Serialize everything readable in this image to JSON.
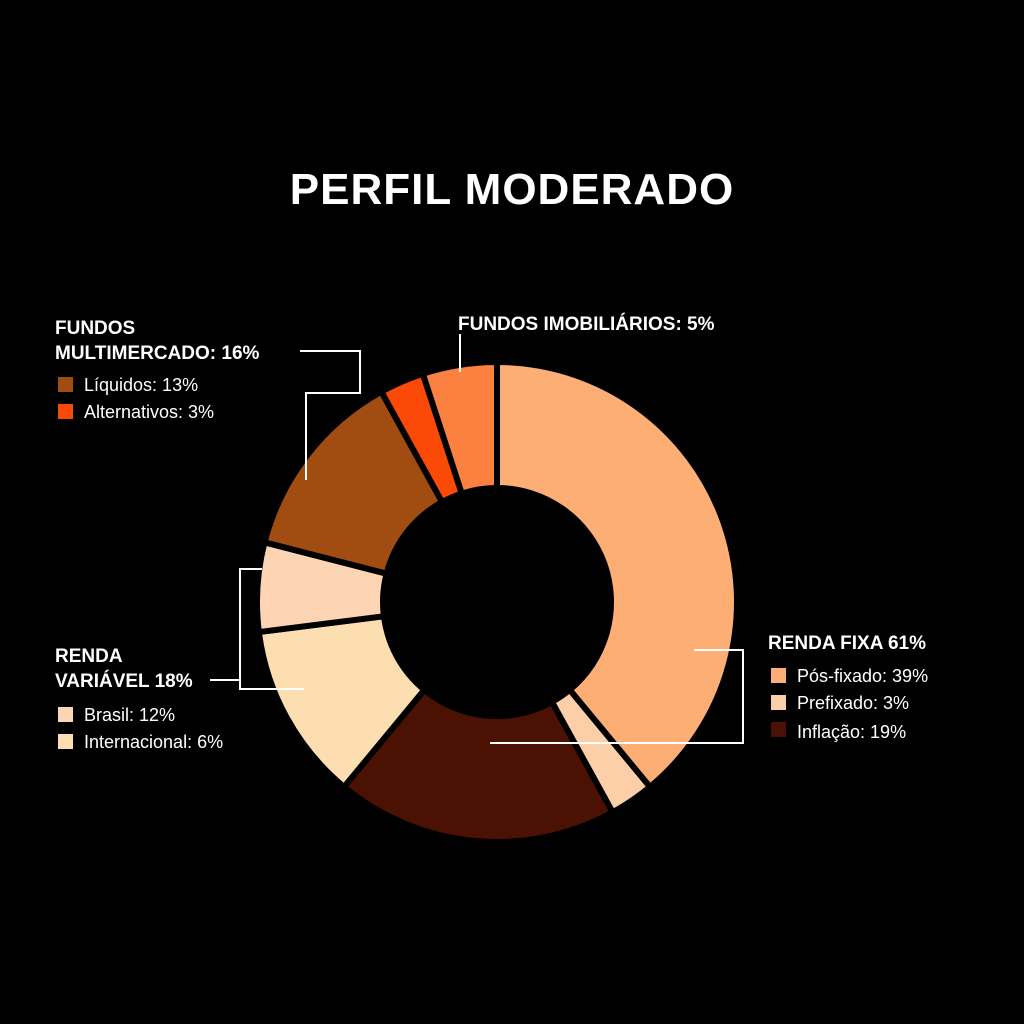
{
  "title": "PERFIL MODERADO",
  "chart_data": {
    "type": "pie",
    "title": "PERFIL MODERADO",
    "unit": "%",
    "groups": [
      {
        "name": "RENDA FIXA",
        "label": "RENDA FIXA 61%",
        "value": 61,
        "items": [
          {
            "name": "Pós-fixado",
            "label": "Pós-fixado: 39%",
            "value": 39,
            "color": "#FDAE74"
          },
          {
            "name": "Prefixado",
            "label": "Prefixado: 3%",
            "value": 3,
            "color": "#FDCFA8"
          },
          {
            "name": "Inflação",
            "label": "Inflação: 19%",
            "value": 19,
            "color": "#4B1204"
          }
        ]
      },
      {
        "name": "RENDA VARIÁVEL",
        "label_lines": [
          "RENDA",
          "VARIÁVEL 18%"
        ],
        "value": 18,
        "items": [
          {
            "name": "Brasil",
            "label": "Brasil: 12%",
            "value": 12,
            "color": "#FDDEB0"
          },
          {
            "name": "Internacional",
            "label": "Internacional: 6%",
            "value": 6,
            "color": "#FDD5B4"
          }
        ]
      },
      {
        "name": "FUNDOS MULTIMERCADO",
        "label_lines": [
          "FUNDOS",
          "MULTIMERCADO: 16%"
        ],
        "value": 16,
        "items": [
          {
            "name": "Líquidos",
            "label": "Líquidos: 13%",
            "value": 13,
            "color": "#A14D12"
          },
          {
            "name": "Alternativos",
            "label": "Alternativos: 3%",
            "value": 3,
            "color": "#FB4A07"
          }
        ]
      },
      {
        "name": "FUNDOS IMOBILIÁRIOS",
        "label": "FUNDOS IMOBILIÁRIOS: 5%",
        "value": 5,
        "items": [
          {
            "name": "Fundos Imobiliários",
            "value": 5,
            "color": "#FB8140"
          }
        ]
      }
    ],
    "slice_order": [
      {
        "name": "Pós-fixado",
        "value": 39,
        "color": "#FDAE74"
      },
      {
        "name": "Prefixado",
        "value": 3,
        "color": "#FDCFA8"
      },
      {
        "name": "Inflação",
        "value": 19,
        "color": "#4B1204"
      },
      {
        "name": "Brasil",
        "value": 12,
        "color": "#FDDEB0"
      },
      {
        "name": "Internacional",
        "value": 6,
        "color": "#FDD5B4"
      },
      {
        "name": "Líquidos",
        "value": 13,
        "color": "#A14D12"
      },
      {
        "name": "Alternativos",
        "value": 3,
        "color": "#FB4A07"
      },
      {
        "name": "Fundos Imobiliários",
        "value": 5,
        "color": "#FB8140"
      }
    ]
  }
}
